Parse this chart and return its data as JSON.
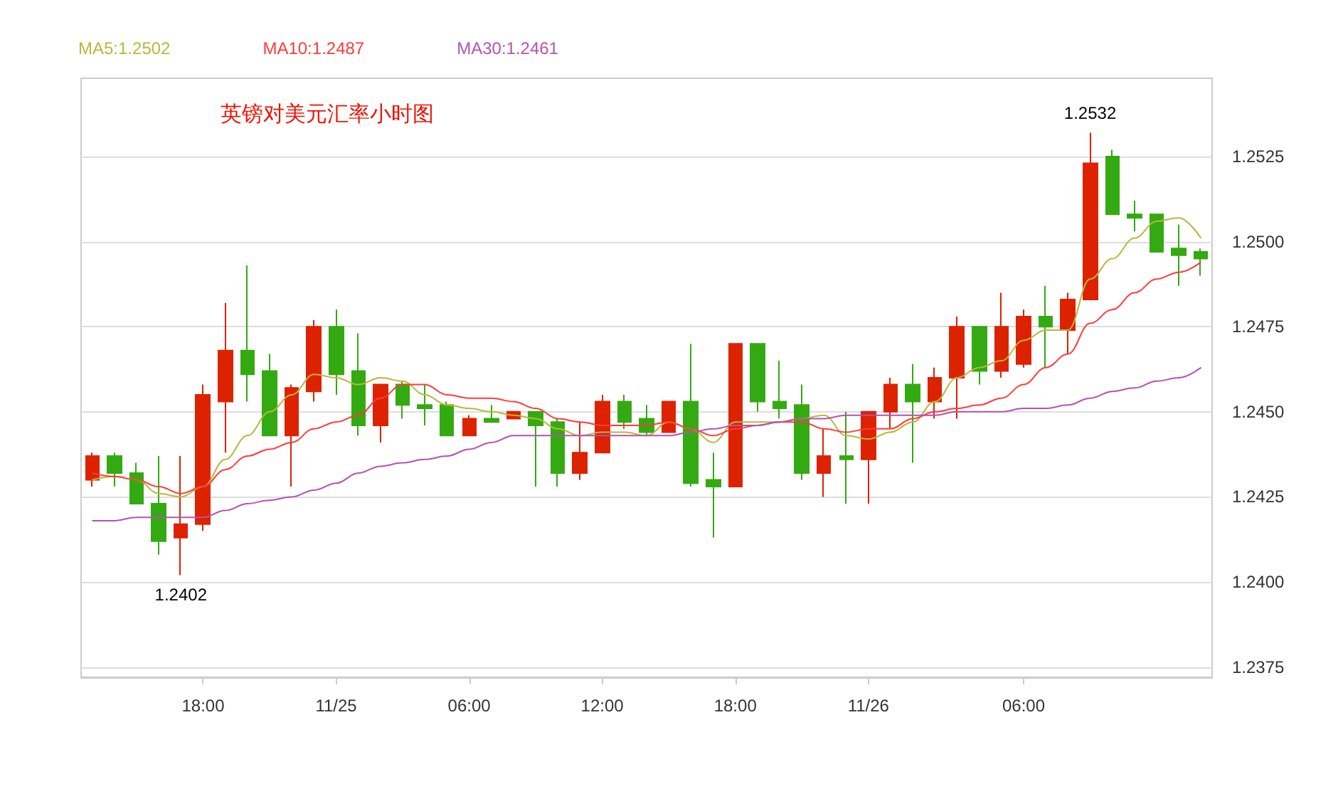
{
  "chart_data": {
    "type": "candlestick",
    "title": "英镑对美元汇率小时图",
    "categories": [
      null,
      null,
      null,
      null,
      null,
      "18:00",
      null,
      null,
      null,
      null,
      null,
      "11/25",
      null,
      null,
      null,
      null,
      null,
      "06:00",
      null,
      null,
      null,
      null,
      null,
      "12:00",
      null,
      null,
      null,
      null,
      null,
      "18:00",
      null,
      null,
      null,
      null,
      null,
      "11/26",
      null,
      null,
      null,
      null,
      null,
      null,
      "06:00",
      null,
      null,
      null,
      null,
      null,
      null,
      null,
      null
    ],
    "ylim": [
      1.2372,
      1.2548
    ],
    "yticks": [
      1.2375,
      {
        "value": 1.24,
        "label": "1.2400"
      },
      1.2425,
      {
        "value": 1.245,
        "label": "1.2450"
      },
      1.2475,
      {
        "value": 1.25,
        "label": "1.2500"
      },
      1.2525
    ],
    "grid": "y",
    "legend": "top left",
    "marker": "none",
    "annotations": [
      {
        "text": "1.2532",
        "y": 1.2532
      },
      {
        "text": "1.2402",
        "y": 1.2402
      }
    ],
    "series": [
      {
        "type": "line",
        "name": "MA5:1.2502",
        "color": "#b8b83a",
        "values": [
          1.243,
          1.2431,
          1.243,
          1.2426,
          1.2425,
          1.2428,
          1.2436,
          1.2443,
          1.245,
          1.2455,
          1.2461,
          1.246,
          1.2458,
          1.246,
          1.2459,
          1.2455,
          1.2452,
          1.2451,
          1.245,
          1.2449,
          1.2448,
          1.2445,
          1.2443,
          1.2444,
          1.2444,
          1.2443,
          1.2447,
          1.2445,
          1.2441,
          1.2447,
          1.2447,
          1.2447,
          1.2448,
          1.2449,
          1.2443,
          1.2442,
          1.2444,
          1.2447,
          1.2453,
          1.246,
          1.2463,
          1.2465,
          1.2471,
          1.2474,
          1.2474,
          1.2489,
          1.2495,
          1.2501,
          1.2506,
          1.2507,
          1.2501
        ]
      },
      {
        "type": "line",
        "name": "MA10:1.2487",
        "color": "#ff3b3b",
        "values": [
          1.2432,
          1.2431,
          1.243,
          1.2428,
          1.2426,
          1.2428,
          1.2433,
          1.2437,
          1.2439,
          1.2441,
          1.2445,
          1.2447,
          1.2449,
          1.2454,
          1.2458,
          1.2458,
          1.2455,
          1.2454,
          1.2454,
          1.2453,
          1.2451,
          1.2448,
          1.2447,
          1.2446,
          1.2446,
          1.2446,
          1.2447,
          1.2445,
          1.2443,
          1.2445,
          1.2446,
          1.2447,
          1.2447,
          1.2445,
          1.2444,
          1.2445,
          1.2445,
          1.2448,
          1.245,
          1.2451,
          1.2452,
          1.2454,
          1.2458,
          1.2463,
          1.2467,
          1.2476,
          1.248,
          1.2485,
          1.2489,
          1.2491,
          1.2494
        ]
      },
      {
        "type": "line",
        "name": "MA30:1.2461",
        "color": "#b452b4",
        "values": [
          1.2418,
          1.2418,
          1.2419,
          1.2419,
          1.2419,
          1.2419,
          1.2421,
          1.2423,
          1.2424,
          1.2425,
          1.2427,
          1.2429,
          1.2432,
          1.2434,
          1.2435,
          1.2436,
          1.2437,
          1.2439,
          1.2441,
          1.2443,
          1.2443,
          1.2443,
          1.2443,
          1.2443,
          1.2443,
          1.2443,
          1.2443,
          1.2444,
          1.2445,
          1.2446,
          1.2446,
          1.2447,
          1.2448,
          1.2448,
          1.2449,
          1.2449,
          1.2449,
          1.2449,
          1.2449,
          1.245,
          1.245,
          1.245,
          1.2451,
          1.2451,
          1.2452,
          1.2454,
          1.2456,
          1.2457,
          1.2459,
          1.246,
          1.2463
        ]
      },
      {
        "ohlc": [
          [
            1.243,
            1.2438,
            1.2428,
            1.2437
          ],
          [
            1.2437,
            1.2438,
            1.2428,
            1.2432
          ],
          [
            1.2432,
            1.2435,
            1.2423,
            1.2423
          ],
          [
            1.2423,
            1.2437,
            1.2408,
            1.2412
          ],
          [
            1.2413,
            1.2437,
            1.2402,
            1.2417
          ],
          [
            1.2417,
            1.2458,
            1.2415,
            1.2455
          ],
          [
            1.2453,
            1.2482,
            1.2438,
            1.2468
          ],
          [
            1.2468,
            1.2493,
            1.2453,
            1.2461
          ],
          [
            1.2462,
            1.2467,
            1.2443,
            1.2443
          ],
          [
            1.2443,
            1.2458,
            1.2428,
            1.2457
          ],
          [
            1.2456,
            1.2477,
            1.2453,
            1.2475
          ],
          [
            1.2475,
            1.248,
            1.2455,
            1.2461
          ],
          [
            1.2462,
            1.2473,
            1.2443,
            1.2446
          ],
          [
            1.2446,
            1.2458,
            1.2441,
            1.2458
          ],
          [
            1.2458,
            1.2459,
            1.2448,
            1.2452
          ],
          [
            1.2452,
            1.2458,
            1.2446,
            1.2451
          ],
          [
            1.2452,
            1.2453,
            1.2443,
            1.2443
          ],
          [
            1.2443,
            1.2449,
            1.2443,
            1.2448
          ],
          [
            1.2448,
            1.2452,
            1.2447,
            1.2447
          ],
          [
            1.2448,
            1.245,
            1.2448,
            1.245
          ],
          [
            1.245,
            1.245,
            1.2428,
            1.2446
          ],
          [
            1.2447,
            1.2448,
            1.2428,
            1.2432
          ],
          [
            1.2432,
            1.2447,
            1.243,
            1.2438
          ],
          [
            1.2438,
            1.2455,
            1.2438,
            1.2453
          ],
          [
            1.2453,
            1.2455,
            1.2445,
            1.2447
          ],
          [
            1.2448,
            1.2452,
            1.2443,
            1.2444
          ],
          [
            1.2444,
            1.2453,
            1.2444,
            1.2453
          ],
          [
            1.2453,
            1.247,
            1.2428,
            1.2429
          ],
          [
            1.243,
            1.2438,
            1.2413,
            1.2428
          ],
          [
            1.2428,
            1.247,
            1.2428,
            1.247
          ],
          [
            1.247,
            1.247,
            1.245,
            1.2453
          ],
          [
            1.2453,
            1.2465,
            1.2448,
            1.2451
          ],
          [
            1.2452,
            1.2458,
            1.243,
            1.2432
          ],
          [
            1.2432,
            1.2445,
            1.2425,
            1.2437
          ],
          [
            1.2437,
            1.245,
            1.2423,
            1.2436
          ],
          [
            1.2436,
            1.245,
            1.2423,
            1.245
          ],
          [
            1.245,
            1.246,
            1.2445,
            1.2458
          ],
          [
            1.2458,
            1.2464,
            1.2435,
            1.2453
          ],
          [
            1.2453,
            1.2463,
            1.2448,
            1.246
          ],
          [
            1.246,
            1.2478,
            1.2448,
            1.2475
          ],
          [
            1.2475,
            1.2475,
            1.2458,
            1.2462
          ],
          [
            1.2462,
            1.2485,
            1.246,
            1.2475
          ],
          [
            1.2464,
            1.248,
            1.2463,
            1.2478
          ],
          [
            1.2478,
            1.2487,
            1.2463,
            1.2475
          ],
          [
            1.2474,
            1.2485,
            1.2467,
            1.2483
          ],
          [
            1.2483,
            1.2532,
            1.2483,
            1.2523
          ],
          [
            1.2525,
            1.2527,
            1.2508,
            1.2508
          ],
          [
            1.2508,
            1.2512,
            1.2503,
            1.2507
          ],
          [
            1.2508,
            1.2508,
            1.2497,
            1.2497
          ],
          [
            1.2498,
            1.2505,
            1.2487,
            1.2496
          ],
          [
            1.2497,
            1.2498,
            1.249,
            1.2495
          ]
        ],
        "colors": [
          "#dd2200",
          "#33aa11",
          "#33aa11",
          "#33aa11",
          "#dd2200",
          "#dd2200",
          "#dd2200",
          "#33aa11",
          "#33aa11",
          "#dd2200",
          "#dd2200",
          "#33aa11",
          "#33aa11",
          "#dd2200",
          "#33aa11",
          "#33aa11",
          "#33aa11",
          "#dd2200",
          "#33aa11",
          "#dd2200",
          "#33aa11",
          "#33aa11",
          "#dd2200",
          "#dd2200",
          "#33aa11",
          "#33aa11",
          "#dd2200",
          "#33aa11",
          "#33aa11",
          "#dd2200",
          "#33aa11",
          "#33aa11",
          "#33aa11",
          "#dd2200",
          "#33aa11",
          "#dd2200",
          "#dd2200",
          "#33aa11",
          "#dd2200",
          "#dd2200",
          "#33aa11",
          "#dd2200",
          "#dd2200",
          "#33aa11",
          "#dd2200",
          "#dd2200",
          "#33aa11",
          "#33aa11",
          "#33aa11",
          "#33aa11",
          "#33aa11"
        ]
      }
    ]
  }
}
